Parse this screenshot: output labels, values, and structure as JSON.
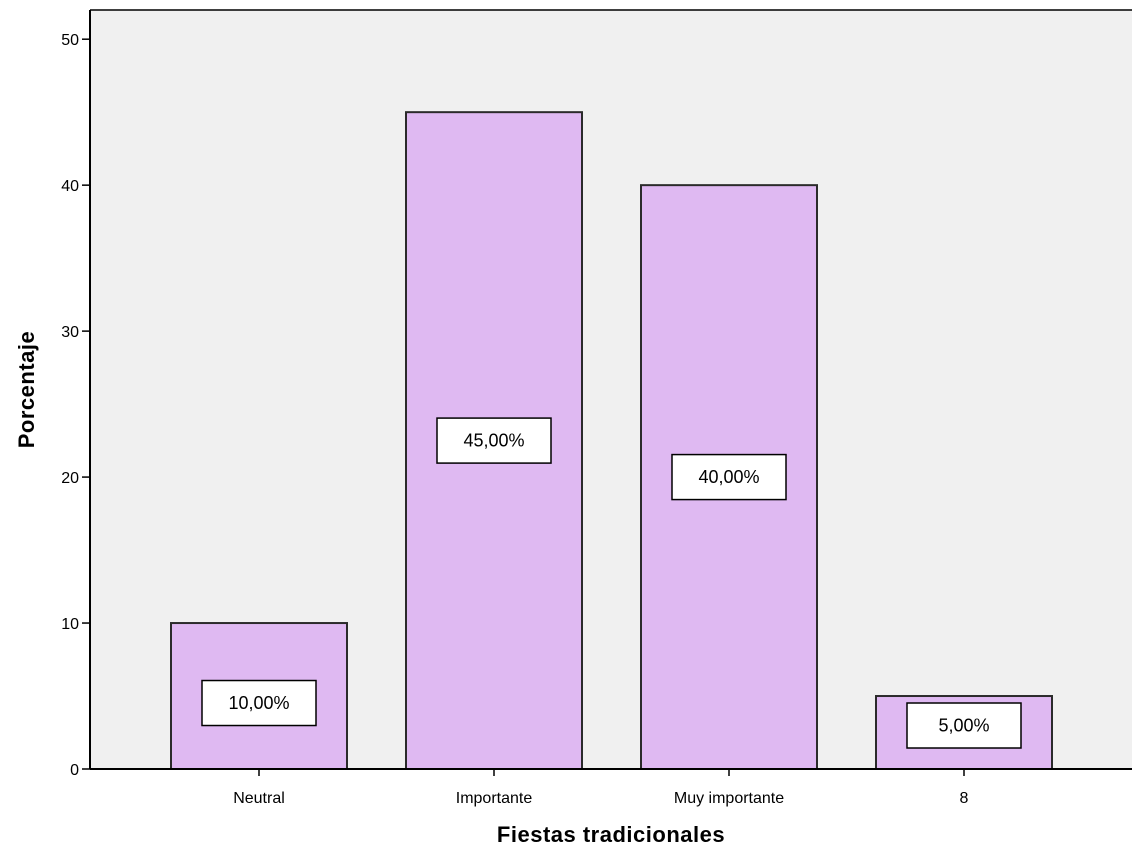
{
  "chart_data": {
    "type": "bar",
    "title": "",
    "xlabel": "Fiestas tradicionales",
    "ylabel": "Porcentaje",
    "categories": [
      "Neutral",
      "Importante",
      "Muy importante",
      "8"
    ],
    "values": [
      10,
      45,
      40,
      5
    ],
    "data_labels": [
      "10,00%",
      "45,00%",
      "40,00%",
      "5,00%"
    ],
    "ylim": [
      0,
      52
    ],
    "yticks": [
      "0",
      "10",
      "20",
      "30",
      "40",
      "50"
    ],
    "grid": false,
    "legend": "none",
    "colors": {
      "bar_fill": "#dfb9f2",
      "bar_stroke": "#2b2b2b",
      "plot_background": "#f0f0f0",
      "label_box_fill": "#ffffff"
    }
  }
}
